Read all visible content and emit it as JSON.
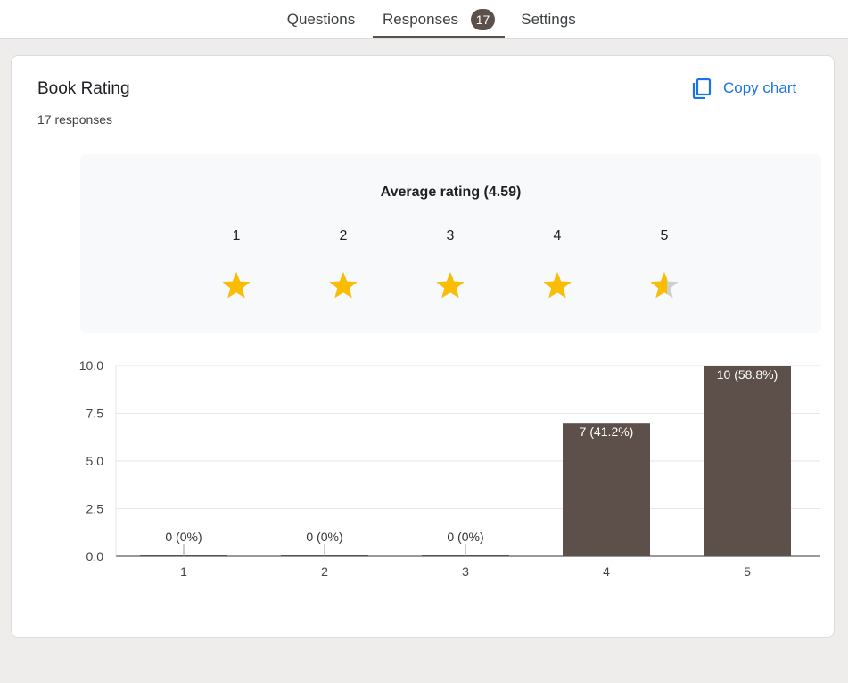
{
  "tabs": {
    "questions": "Questions",
    "responses": "Responses",
    "responses_badge": "17",
    "settings": "Settings"
  },
  "question": {
    "title": "Book Rating",
    "responses": "17 responses",
    "copy_label": "Copy chart"
  },
  "rating": {
    "average_label": "Average rating (4.59)",
    "average": 4.59,
    "stars": [
      "1",
      "2",
      "3",
      "4",
      "5"
    ]
  },
  "colors": {
    "bar": "#5d504b",
    "accent": "#1a73e8",
    "star_fill": "#fbbc04",
    "star_empty": "#cfcfcf"
  },
  "chart_data": {
    "type": "bar",
    "categories": [
      "1",
      "2",
      "3",
      "4",
      "5"
    ],
    "values": [
      0,
      0,
      0,
      7,
      10
    ],
    "labels": [
      "0 (0%)",
      "0 (0%)",
      "0 (0%)",
      "7 (41.2%)",
      "10 (58.8%)"
    ],
    "yticks": [
      "0.0",
      "2.5",
      "5.0",
      "7.5",
      "10.0"
    ],
    "ylim": [
      0,
      10
    ],
    "title": "",
    "xlabel": "",
    "ylabel": ""
  }
}
